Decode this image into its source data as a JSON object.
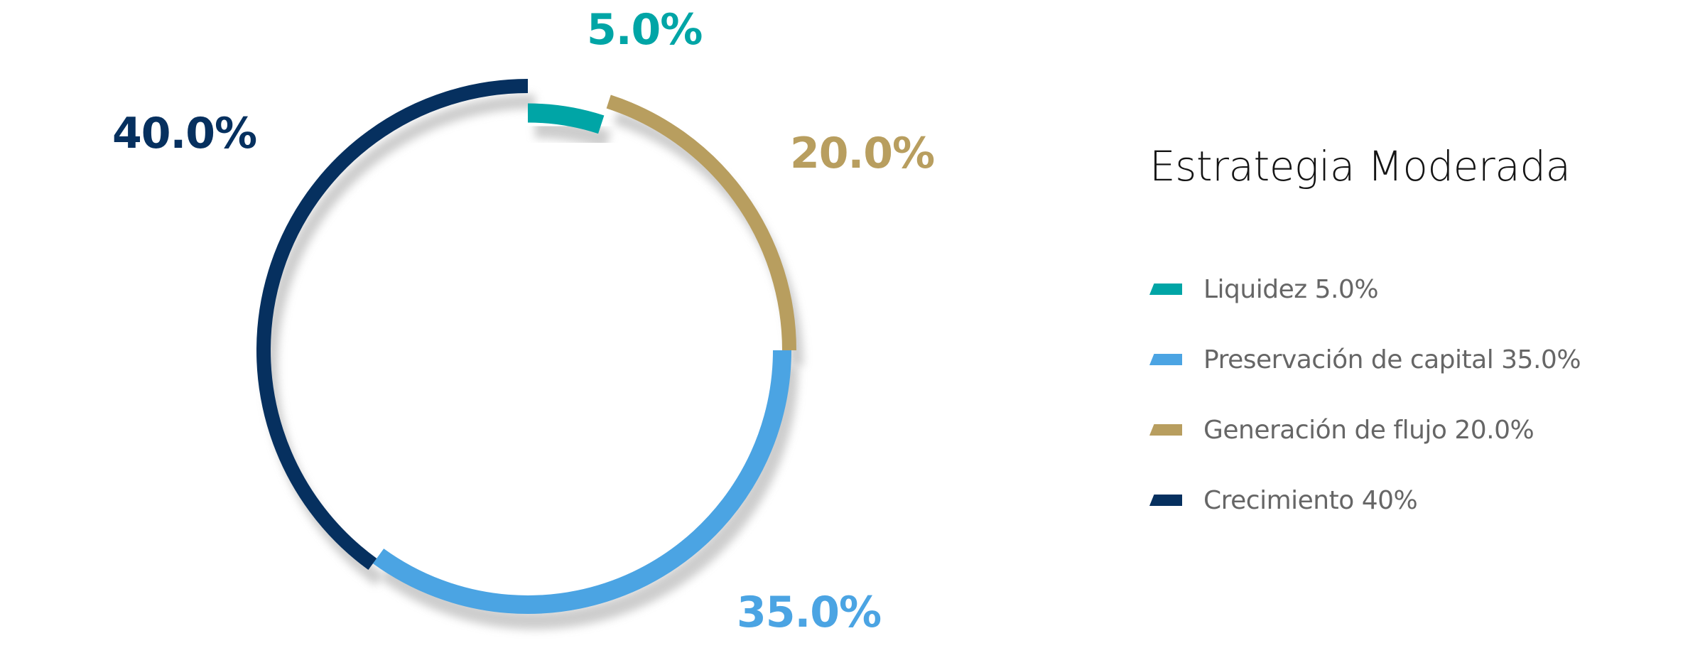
{
  "chart_data": {
    "type": "pie",
    "variant": "donut",
    "title": "Estrategia Moderada",
    "legend_position": "right",
    "slices": [
      {
        "name": "Liquidez",
        "value": 5.0,
        "label": "5.0%",
        "legend": "Liquidez 5.0%",
        "color": "#00A5A6"
      },
      {
        "name": "Generación de flujo",
        "value": 20.0,
        "label": "20.0%",
        "legend": "Generación de flujo 20.0%",
        "color": "#B89E5F"
      },
      {
        "name": "Preservación de capital",
        "value": 35.0,
        "label": "35.0%",
        "legend": "Preservación de capital 35.0%",
        "color": "#4BA4E3"
      },
      {
        "name": "Crecimiento",
        "value": 40.0,
        "label": "40.0%",
        "legend": "Crecimiento 40%",
        "color": "#06305F"
      }
    ],
    "legend_order": [
      0,
      2,
      1,
      3
    ]
  }
}
